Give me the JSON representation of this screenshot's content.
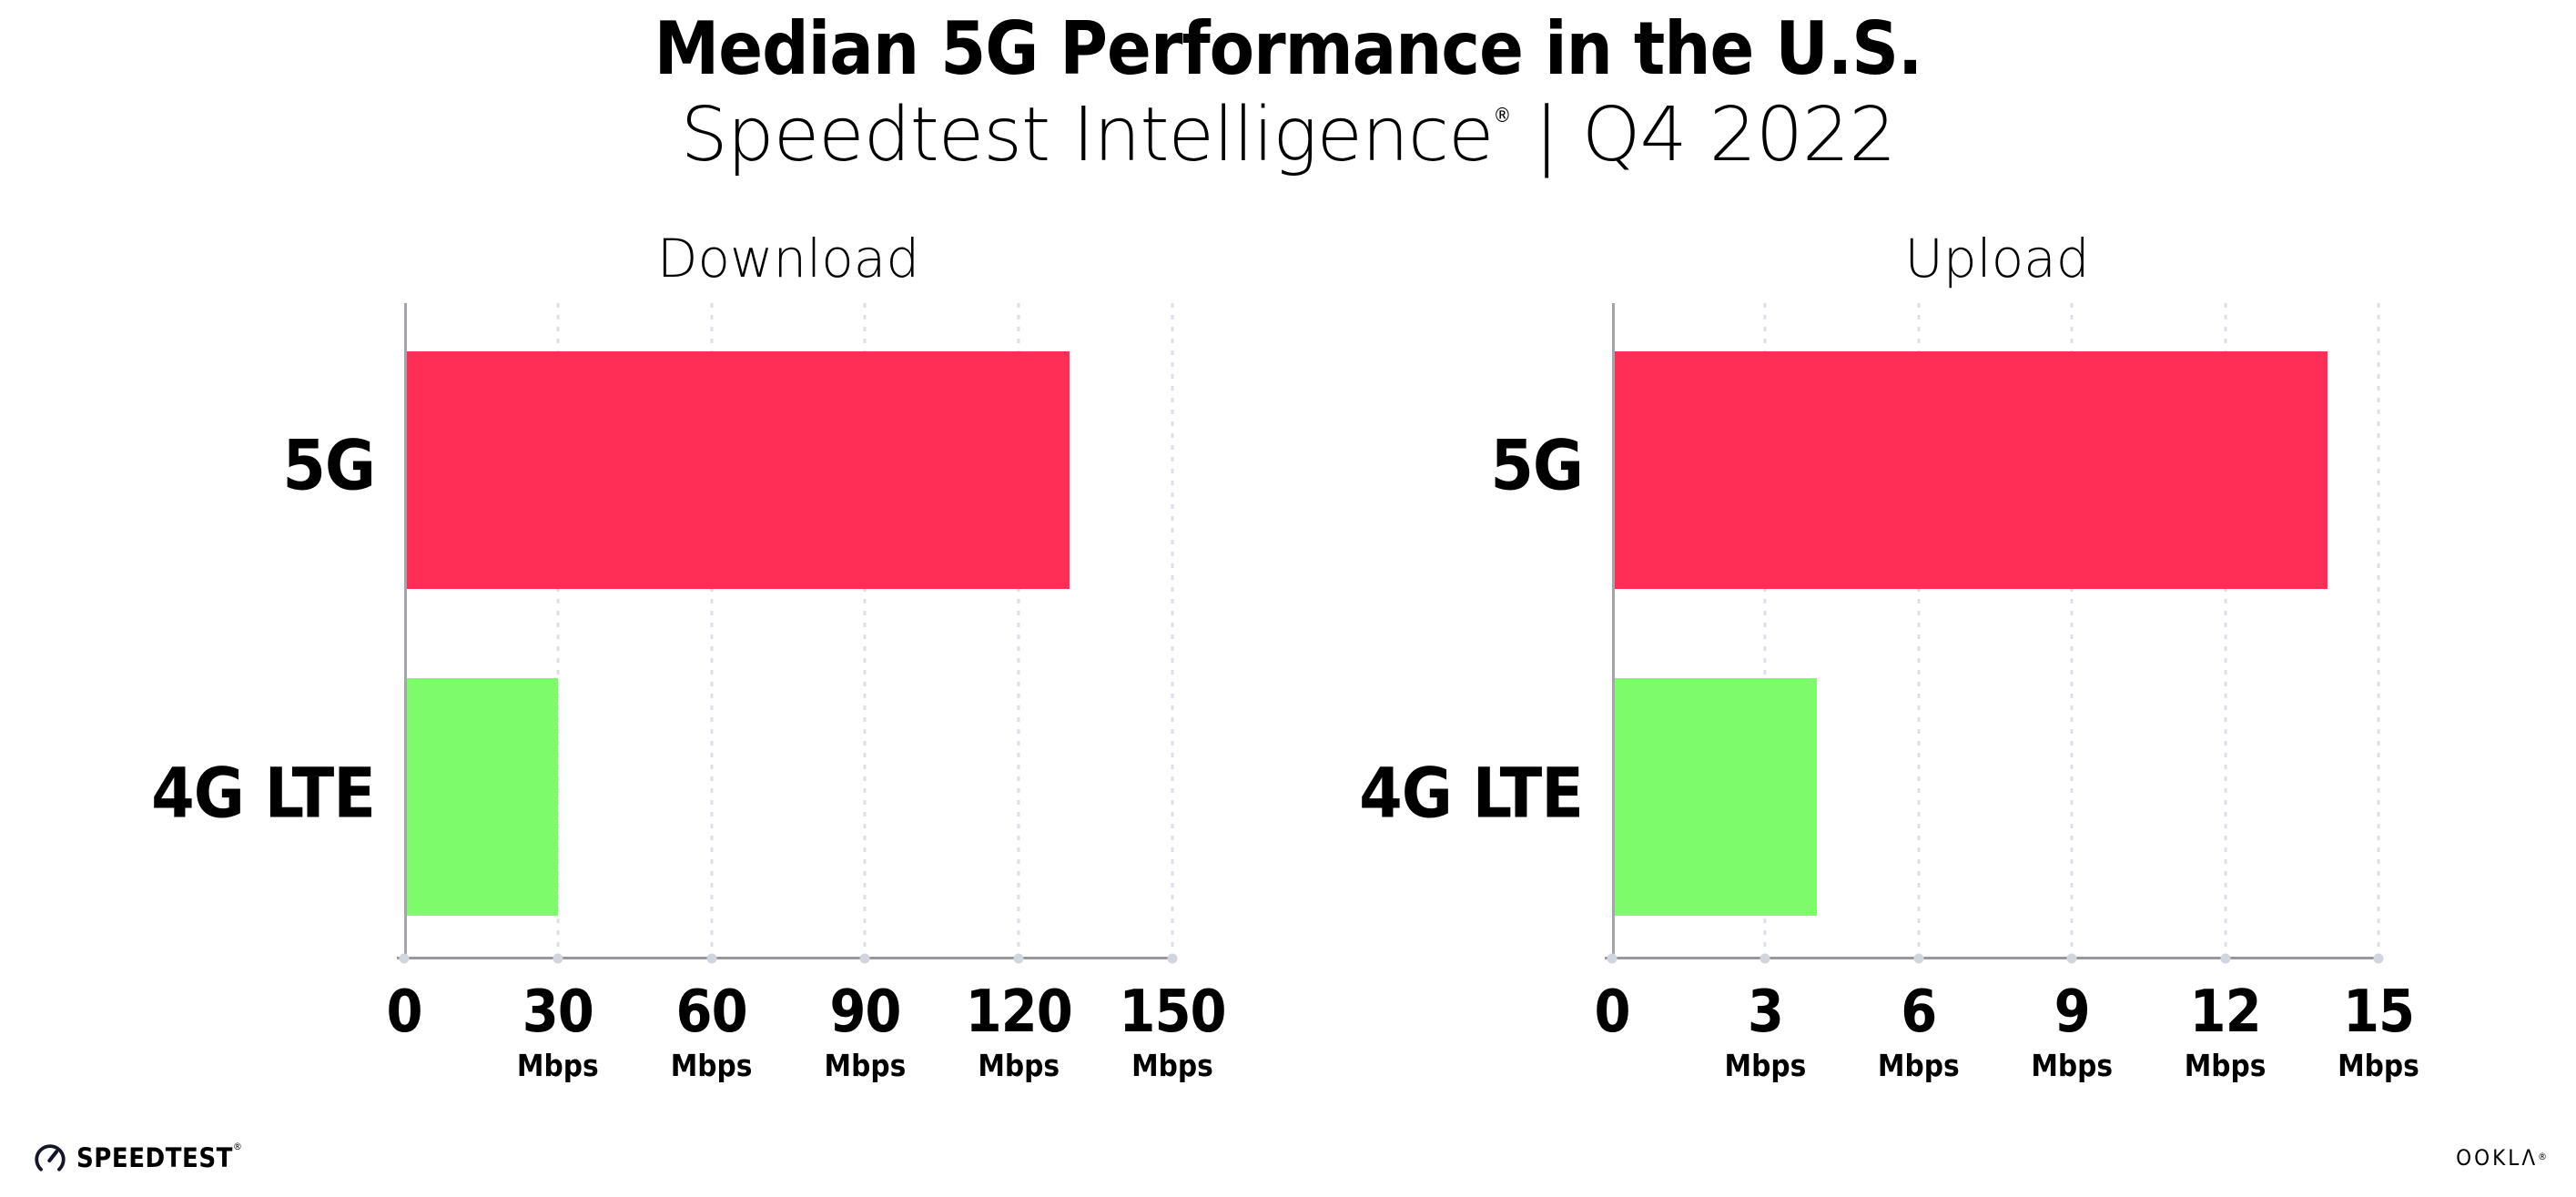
{
  "header": {
    "title": "Median 5G Performance in the U.S.",
    "subtitle": {
      "brand": "Speedtest Intelligence",
      "registered_mark": "®",
      "separator": "|",
      "period": "Q4 2022"
    }
  },
  "chart_data": [
    {
      "type": "bar",
      "orientation": "horizontal",
      "title": "Download",
      "categories": [
        "5G",
        "4G LTE"
      ],
      "values": [
        130,
        30
      ],
      "unit": "Mbps",
      "xlabel": "Mbps",
      "ylabel": "",
      "xlim": [
        0,
        150
      ],
      "xticks": [
        0,
        30,
        60,
        90,
        120,
        150
      ],
      "grid": "vertical-dotted",
      "legend": "none",
      "bar_colors": {
        "5G": "#FF2E56",
        "4G LTE": "#7DFB6A"
      }
    },
    {
      "type": "bar",
      "orientation": "horizontal",
      "title": "Upload",
      "categories": [
        "5G",
        "4G LTE"
      ],
      "values": [
        14,
        4
      ],
      "unit": "Mbps",
      "xlabel": "Mbps",
      "ylabel": "",
      "xlim": [
        0,
        15
      ],
      "xticks": [
        0,
        3,
        6,
        9,
        12,
        15
      ],
      "grid": "vertical-dotted",
      "legend": "none",
      "bar_colors": {
        "5G": "#FF2E56",
        "4G LTE": "#7DFB6A"
      }
    }
  ],
  "footer": {
    "speedtest_wordmark": "SPEEDTEST",
    "speedtest_mark": "®",
    "ookla_wordmark": "OOKLΛ",
    "ookla_mark": "®"
  },
  "colors": {
    "bar_5g": "#FF2E56",
    "bar_4g_lte": "#7DFB6A",
    "gridline": "#DEDFE8",
    "axis": "#97979D",
    "tick_dot": "#D3D5DE",
    "text": "#000000",
    "background": "#FFFFFF"
  }
}
